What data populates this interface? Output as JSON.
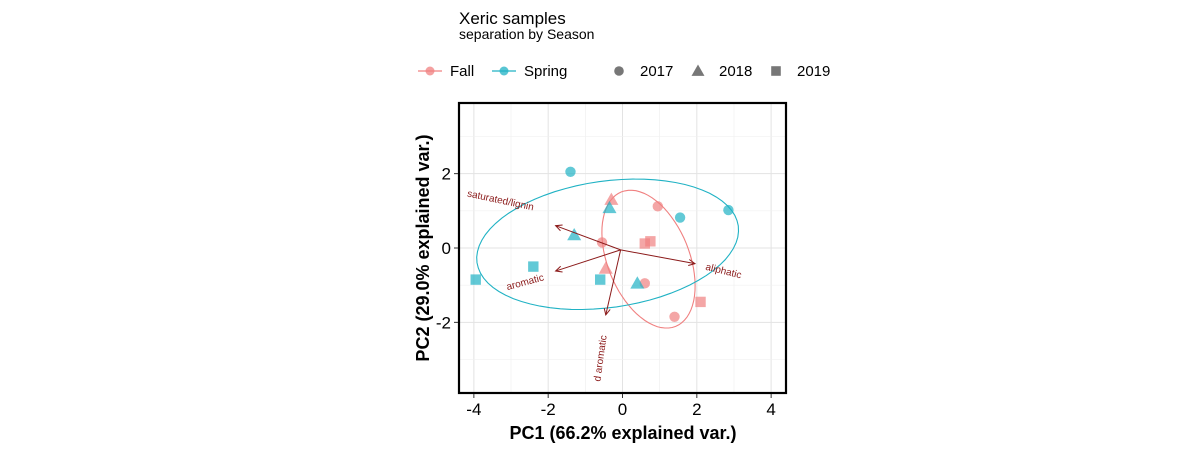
{
  "chart_data": {
    "type": "scatter",
    "title": "Xeric samples",
    "subtitle": "separation by Season",
    "xlabel": "PC1 (66.2% explained var.)",
    "ylabel": "PC2 (29.0% explained var.)",
    "xlim": [
      -4.4,
      4.4
    ],
    "ylim": [
      -3.9,
      3.9
    ],
    "xticks": [
      -4,
      -2,
      0,
      2,
      4
    ],
    "yticks": [
      -2,
      0,
      2
    ],
    "grid": true,
    "legend_position": "top",
    "colors": {
      "Fall": "#f08080",
      "Spring": "#20b2c4",
      "arrow": "#8b1a1a"
    },
    "legend_color": [
      {
        "name": "Fall",
        "color": "#f08080"
      },
      {
        "name": "Spring",
        "color": "#20b2c4"
      }
    ],
    "legend_shape": [
      {
        "name": "2017",
        "shape": "circle"
      },
      {
        "name": "2018",
        "shape": "triangle"
      },
      {
        "name": "2019",
        "shape": "square"
      }
    ],
    "series": [
      {
        "name": "Fall",
        "points": [
          {
            "x": 0.95,
            "y": 1.12,
            "year": "2017"
          },
          {
            "x": -0.55,
            "y": 0.15,
            "year": "2017"
          },
          {
            "x": 0.6,
            "y": -0.95,
            "year": "2017"
          },
          {
            "x": 1.4,
            "y": -1.85,
            "year": "2017"
          },
          {
            "x": -0.3,
            "y": 1.3,
            "year": "2018"
          },
          {
            "x": -0.45,
            "y": -0.55,
            "year": "2018"
          },
          {
            "x": 0.6,
            "y": 0.12,
            "year": "2019"
          },
          {
            "x": 0.75,
            "y": 0.18,
            "year": "2019"
          },
          {
            "x": 2.1,
            "y": -1.45,
            "year": "2019"
          }
        ],
        "ellipse": {
          "cx": 0.7,
          "cy": -0.3,
          "rx": 1.1,
          "ry": 1.95,
          "angle": 22
        }
      },
      {
        "name": "Spring",
        "points": [
          {
            "x": -1.4,
            "y": 2.05,
            "year": "2017"
          },
          {
            "x": 1.55,
            "y": 0.82,
            "year": "2017"
          },
          {
            "x": 2.85,
            "y": 1.02,
            "year": "2017"
          },
          {
            "x": -0.35,
            "y": 1.08,
            "year": "2018"
          },
          {
            "x": -1.3,
            "y": 0.35,
            "year": "2018"
          },
          {
            "x": 0.4,
            "y": -0.95,
            "year": "2018"
          },
          {
            "x": -3.95,
            "y": -0.85,
            "year": "2019"
          },
          {
            "x": -2.4,
            "y": -0.5,
            "year": "2019"
          },
          {
            "x": -0.6,
            "y": -0.85,
            "year": "2019"
          }
        ],
        "ellipse": {
          "cx": -0.4,
          "cy": 0.1,
          "rx": 3.55,
          "ry": 1.7,
          "angle": 8
        }
      }
    ],
    "loadings": [
      {
        "label": "saturated/lignin",
        "x": -1.8,
        "y": 0.6
      },
      {
        "label": "aliphatic",
        "x": 1.95,
        "y": -0.42
      },
      {
        "label": "aromatic",
        "x": -1.8,
        "y": -0.62
      },
      {
        "label": "d aromatic",
        "x": -0.45,
        "y": -1.8
      }
    ],
    "loading_origin": {
      "x": -0.05,
      "y": -0.05
    }
  }
}
